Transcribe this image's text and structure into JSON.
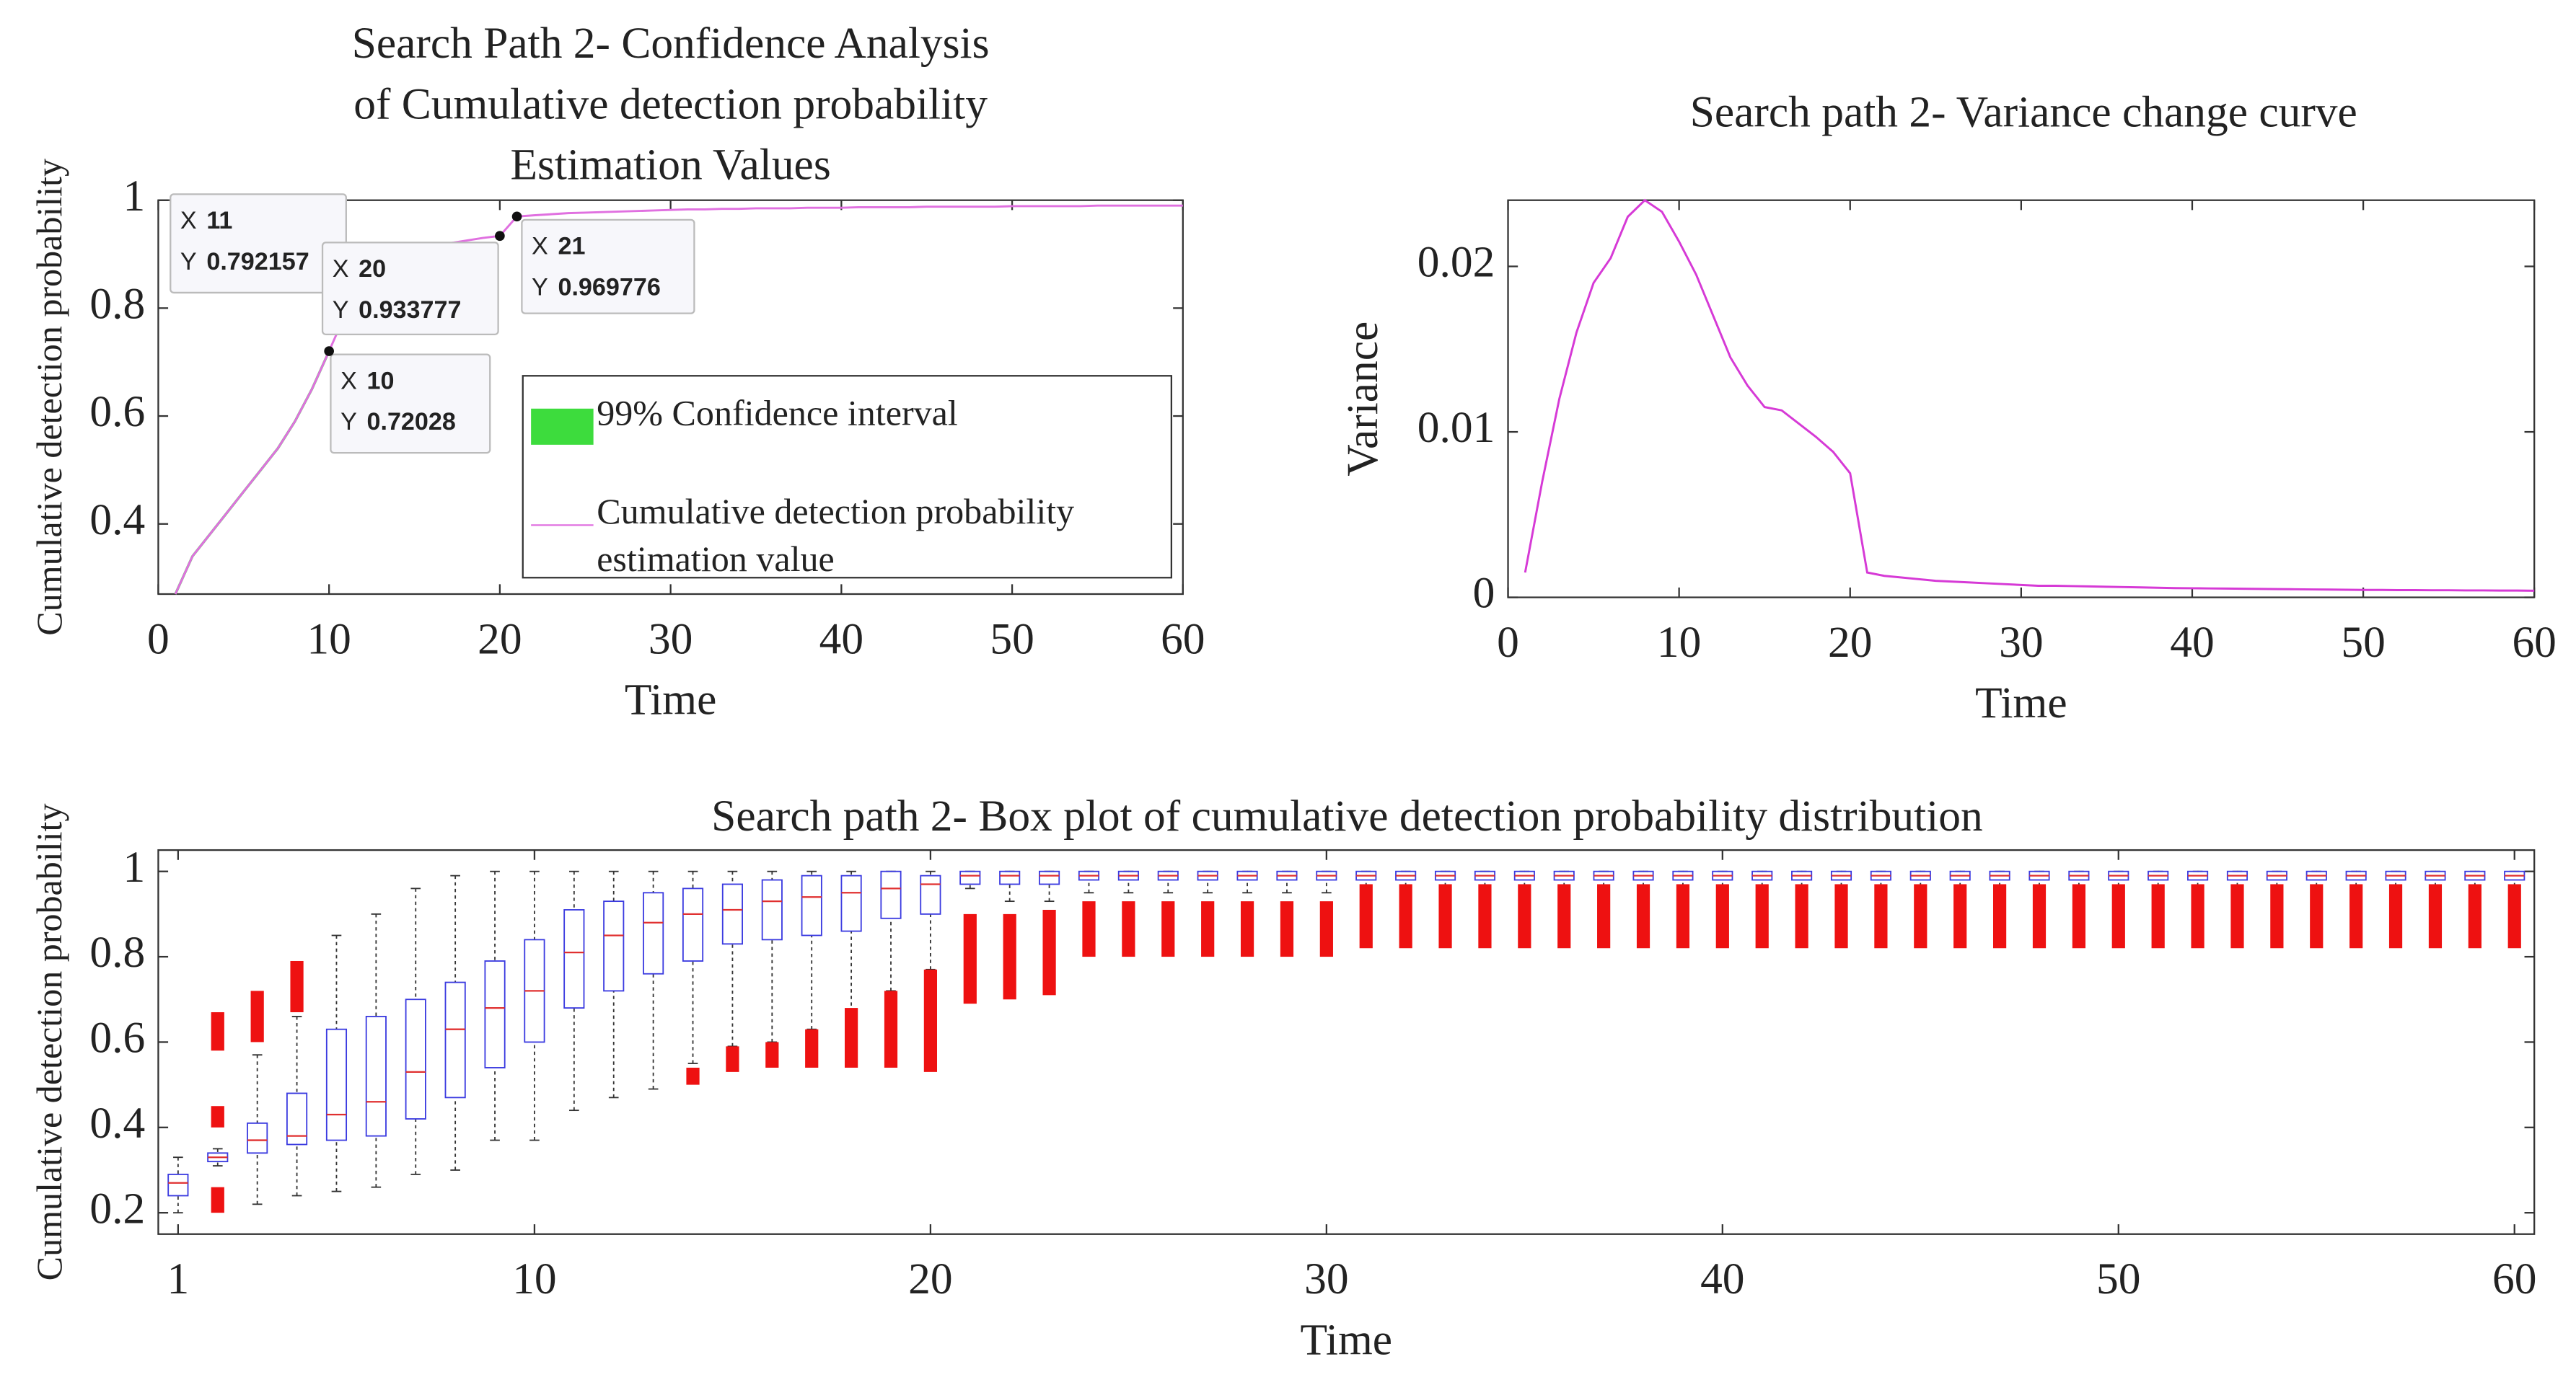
{
  "chart_data": [
    {
      "type": "line",
      "title": [
        "Search Path 2- Confidence Analysis",
        "of Cumulative detection probability",
        "Estimation Values"
      ],
      "xlabel": "Time",
      "ylabel": "Cumulative detection probability",
      "x": [
        1,
        2,
        3,
        4,
        5,
        6,
        7,
        8,
        9,
        10,
        11,
        12,
        13,
        14,
        15,
        16,
        17,
        18,
        19,
        20,
        21,
        22,
        23,
        24,
        25,
        26,
        27,
        28,
        29,
        30,
        31,
        32,
        33,
        34,
        35,
        36,
        37,
        38,
        39,
        40,
        41,
        42,
        43,
        44,
        45,
        46,
        47,
        48,
        49,
        50,
        51,
        52,
        53,
        54,
        55,
        56,
        57,
        58,
        59,
        60
      ],
      "series": [
        {
          "name": "99% Confidence interval",
          "color": "#3ddc3d",
          "values": [
            0.27,
            0.34,
            0.38,
            0.42,
            0.46,
            0.5,
            0.54,
            0.59,
            0.65,
            0.72028,
            null,
            null,
            null,
            null,
            null,
            null,
            null,
            null,
            null,
            null,
            null,
            null,
            null,
            null,
            null,
            null,
            null,
            null,
            null,
            null,
            null,
            null,
            null,
            null,
            null,
            null,
            null,
            null,
            null,
            null,
            null,
            null,
            null,
            null,
            null,
            null,
            null,
            null,
            null,
            null,
            null,
            null,
            null,
            null,
            null,
            null,
            null,
            null,
            null,
            null
          ]
        },
        {
          "name": "Cumulative detection probability estimation value",
          "color": "#e070e0",
          "values": [
            0.27,
            0.34,
            0.38,
            0.42,
            0.46,
            0.5,
            0.54,
            0.59,
            0.65,
            0.72028,
            0.792157,
            0.83,
            0.86,
            0.88,
            0.9,
            0.91,
            0.92,
            0.925,
            0.93,
            0.933777,
            0.969776,
            0.972,
            0.974,
            0.976,
            0.977,
            0.978,
            0.979,
            0.98,
            0.981,
            0.982,
            0.983,
            0.983,
            0.984,
            0.984,
            0.985,
            0.985,
            0.985,
            0.986,
            0.986,
            0.986,
            0.987,
            0.987,
            0.987,
            0.987,
            0.988,
            0.988,
            0.988,
            0.988,
            0.988,
            0.989,
            0.989,
            0.989,
            0.989,
            0.989,
            0.99,
            0.99,
            0.99,
            0.99,
            0.99,
            0.99
          ]
        }
      ],
      "xlim": [
        0,
        60
      ],
      "xticks": [
        0,
        10,
        20,
        30,
        40,
        50,
        60
      ],
      "ylim": [
        0.27,
        1
      ],
      "yticks": [
        0.4,
        0.6,
        0.8,
        1
      ],
      "legend": "southeast",
      "datatip_labels": [
        "X",
        "Y"
      ],
      "annotations": [
        {
          "x": 11,
          "y": 0.792157
        },
        {
          "x": 20,
          "y": 0.933777
        },
        {
          "x": 21,
          "y": 0.969776
        },
        {
          "x": 10,
          "y": 0.72028
        }
      ]
    },
    {
      "type": "line",
      "title": [
        "Search path 2- Variance change curve"
      ],
      "xlabel": "Time",
      "ylabel": "Variance",
      "x": [
        1,
        2,
        3,
        4,
        5,
        6,
        7,
        8,
        9,
        10,
        11,
        12,
        13,
        14,
        15,
        16,
        17,
        18,
        19,
        20,
        21,
        22,
        23,
        24,
        25,
        26,
        27,
        28,
        29,
        30,
        31,
        32,
        33,
        34,
        35,
        36,
        37,
        38,
        39,
        40,
        41,
        42,
        43,
        44,
        45,
        46,
        47,
        48,
        49,
        50,
        51,
        52,
        53,
        54,
        55,
        56,
        57,
        58,
        59,
        60
      ],
      "series": [
        {
          "color": "#d63ad6",
          "values": [
            0.0015,
            0.007,
            0.012,
            0.016,
            0.019,
            0.0205,
            0.023,
            0.024,
            0.0233,
            0.0215,
            0.0195,
            0.017,
            0.0145,
            0.0128,
            0.0115,
            0.0113,
            0.0105,
            0.0097,
            0.0088,
            0.0075,
            0.0015,
            0.0013,
            0.0012,
            0.0011,
            0.001,
            0.00095,
            0.0009,
            0.00085,
            0.0008,
            0.00075,
            0.0007,
            0.0007,
            0.00068,
            0.00066,
            0.00064,
            0.00062,
            0.0006,
            0.00058,
            0.00056,
            0.00055,
            0.00054,
            0.00053,
            0.00052,
            0.00051,
            0.0005,
            0.00049,
            0.00048,
            0.00047,
            0.00046,
            0.00045,
            0.00045,
            0.00044,
            0.00044,
            0.00043,
            0.00043,
            0.00042,
            0.00042,
            0.00041,
            0.00041,
            0.0004
          ]
        }
      ],
      "xlim": [
        0,
        60
      ],
      "xticks": [
        0,
        10,
        20,
        30,
        40,
        50,
        60
      ],
      "ylim": [
        0,
        0.024
      ],
      "yticks": [
        0,
        0.01,
        0.02
      ]
    },
    {
      "type": "box",
      "title": [
        "Search path 2- Box plot of cumulative detection probability distribution"
      ],
      "xlabel": "Time",
      "ylabel": "Cumulative detection probability",
      "x": [
        1,
        2,
        3,
        4,
        5,
        6,
        7,
        8,
        9,
        10,
        11,
        12,
        13,
        14,
        15,
        16,
        17,
        18,
        19,
        20,
        21,
        22,
        23,
        24,
        25,
        26,
        27,
        28,
        29,
        30,
        31,
        32,
        33,
        34,
        35,
        36,
        37,
        38,
        39,
        40,
        41,
        42,
        43,
        44,
        45,
        46,
        47,
        48,
        49,
        50,
        51,
        52,
        53,
        54,
        55,
        56,
        57,
        58,
        59,
        60
      ],
      "whisker_low": [
        0.2,
        0.31,
        0.22,
        0.24,
        0.25,
        0.26,
        0.29,
        0.3,
        0.37,
        0.37,
        0.44,
        0.47,
        0.49,
        0.55,
        0.59,
        0.6,
        0.63,
        0.67,
        0.72,
        0.77,
        0.96,
        0.93,
        0.93,
        0.95,
        0.95,
        0.95,
        0.95,
        0.95,
        0.95,
        0.95,
        0.95,
        0.95,
        0.95,
        0.95,
        0.95,
        0.95,
        0.95,
        0.95,
        0.95,
        0.95,
        0.95,
        0.95,
        0.95,
        0.95,
        0.95,
        0.95,
        0.95,
        0.95,
        0.95,
        0.95,
        0.95,
        0.95,
        0.95,
        0.95,
        0.95,
        0.95,
        0.95,
        0.95,
        0.95,
        0.95
      ],
      "q1": [
        0.24,
        0.32,
        0.34,
        0.36,
        0.37,
        0.38,
        0.42,
        0.47,
        0.54,
        0.6,
        0.68,
        0.72,
        0.76,
        0.79,
        0.83,
        0.84,
        0.85,
        0.86,
        0.89,
        0.9,
        0.97,
        0.97,
        0.97,
        0.98,
        0.98,
        0.98,
        0.98,
        0.98,
        0.98,
        0.98,
        0.98,
        0.98,
        0.98,
        0.98,
        0.98,
        0.98,
        0.98,
        0.98,
        0.98,
        0.98,
        0.98,
        0.98,
        0.98,
        0.98,
        0.98,
        0.98,
        0.98,
        0.98,
        0.98,
        0.98,
        0.98,
        0.98,
        0.98,
        0.98,
        0.98,
        0.98,
        0.98,
        0.98,
        0.98,
        0.98
      ],
      "median": [
        0.27,
        0.33,
        0.37,
        0.38,
        0.43,
        0.46,
        0.53,
        0.63,
        0.68,
        0.72,
        0.81,
        0.85,
        0.88,
        0.9,
        0.91,
        0.93,
        0.94,
        0.95,
        0.96,
        0.97,
        0.99,
        0.99,
        0.99,
        0.99,
        0.99,
        0.99,
        0.99,
        0.99,
        0.99,
        0.99,
        0.99,
        0.99,
        0.99,
        0.99,
        0.99,
        0.99,
        0.99,
        0.99,
        0.99,
        0.99,
        0.99,
        0.99,
        0.99,
        0.99,
        0.99,
        0.99,
        0.99,
        0.99,
        0.99,
        0.99,
        0.99,
        0.99,
        0.99,
        0.99,
        0.99,
        0.99,
        0.99,
        0.99,
        0.99,
        0.99
      ],
      "q3": [
        0.29,
        0.34,
        0.41,
        0.48,
        0.63,
        0.66,
        0.7,
        0.74,
        0.79,
        0.84,
        0.91,
        0.93,
        0.95,
        0.96,
        0.97,
        0.98,
        0.99,
        0.99,
        1,
        0.99,
        1,
        1,
        1,
        1,
        1,
        1,
        1,
        1,
        1,
        1,
        1,
        1,
        1,
        1,
        1,
        1,
        1,
        1,
        1,
        1,
        1,
        1,
        1,
        1,
        1,
        1,
        1,
        1,
        1,
        1,
        1,
        1,
        1,
        1,
        1,
        1,
        1,
        1,
        1,
        1
      ],
      "whisker_high": [
        0.33,
        0.35,
        0.57,
        0.66,
        0.85,
        0.9,
        0.96,
        0.99,
        1,
        1,
        1,
        1,
        1,
        1,
        1,
        1,
        1,
        1,
        1,
        1,
        1,
        1,
        1,
        1,
        1,
        1,
        1,
        1,
        1,
        1,
        1,
        1,
        1,
        1,
        1,
        1,
        1,
        1,
        1,
        1,
        1,
        1,
        1,
        1,
        1,
        1,
        1,
        1,
        1,
        1,
        1,
        1,
        1,
        1,
        1,
        1,
        1,
        1,
        1,
        1
      ],
      "outliers": [
        [],
        [
          [
            0.2,
            0.26
          ],
          [
            0.4,
            0.45
          ],
          [
            0.58,
            0.67
          ]
        ],
        [
          [
            0.6,
            0.72
          ]
        ],
        [
          [
            0.67,
            0.79
          ]
        ],
        [],
        [],
        [],
        [],
        [],
        [],
        [],
        [],
        [],
        [
          [
            0.5,
            0.54
          ]
        ],
        [
          [
            0.53,
            0.59
          ]
        ],
        [
          [
            0.54,
            0.6
          ]
        ],
        [
          [
            0.54,
            0.63
          ]
        ],
        [
          [
            0.54,
            0.68
          ]
        ],
        [
          [
            0.54,
            0.72
          ]
        ],
        [
          [
            0.53,
            0.77
          ]
        ],
        [
          [
            0.69,
            0.9
          ]
        ],
        [
          [
            0.7,
            0.9
          ]
        ],
        [
          [
            0.71,
            0.91
          ]
        ],
        [
          [
            0.8,
            0.93
          ]
        ],
        [
          [
            0.8,
            0.93
          ]
        ],
        [
          [
            0.8,
            0.93
          ]
        ],
        [
          [
            0.8,
            0.93
          ]
        ],
        [
          [
            0.8,
            0.93
          ]
        ],
        [
          [
            0.8,
            0.93
          ]
        ],
        [
          [
            0.8,
            0.93
          ]
        ],
        [
          [
            0.82,
            0.97
          ]
        ],
        [
          [
            0.82,
            0.97
          ]
        ],
        [
          [
            0.82,
            0.97
          ]
        ],
        [
          [
            0.82,
            0.97
          ]
        ],
        [
          [
            0.82,
            0.97
          ]
        ],
        [
          [
            0.82,
            0.97
          ]
        ],
        [
          [
            0.82,
            0.97
          ]
        ],
        [
          [
            0.82,
            0.97
          ]
        ],
        [
          [
            0.82,
            0.97
          ]
        ],
        [
          [
            0.82,
            0.97
          ]
        ],
        [
          [
            0.82,
            0.97
          ]
        ],
        [
          [
            0.82,
            0.97
          ]
        ],
        [
          [
            0.82,
            0.97
          ]
        ],
        [
          [
            0.82,
            0.97
          ]
        ],
        [
          [
            0.82,
            0.97
          ]
        ],
        [
          [
            0.82,
            0.97
          ]
        ],
        [
          [
            0.82,
            0.97
          ]
        ],
        [
          [
            0.82,
            0.97
          ]
        ],
        [
          [
            0.82,
            0.97
          ]
        ],
        [
          [
            0.82,
            0.97
          ]
        ],
        [
          [
            0.82,
            0.97
          ]
        ],
        [
          [
            0.82,
            0.97
          ]
        ],
        [
          [
            0.82,
            0.97
          ]
        ],
        [
          [
            0.82,
            0.97
          ]
        ],
        [
          [
            0.82,
            0.97
          ]
        ],
        [
          [
            0.82,
            0.97
          ]
        ],
        [
          [
            0.82,
            0.97
          ]
        ],
        [
          [
            0.82,
            0.97
          ]
        ],
        [
          [
            0.82,
            0.97
          ]
        ],
        [
          [
            0.82,
            0.97
          ]
        ]
      ],
      "box_color": "#3a3ae0",
      "median_color": "#e03030",
      "outlier_color": "#ee1111",
      "xlim": [
        0.5,
        60.5
      ],
      "xticks": [
        1,
        10,
        20,
        30,
        40,
        50,
        60
      ],
      "ylim": [
        0.15,
        1.05
      ],
      "yticks": [
        0.2,
        0.4,
        0.6,
        0.8,
        1
      ]
    }
  ]
}
